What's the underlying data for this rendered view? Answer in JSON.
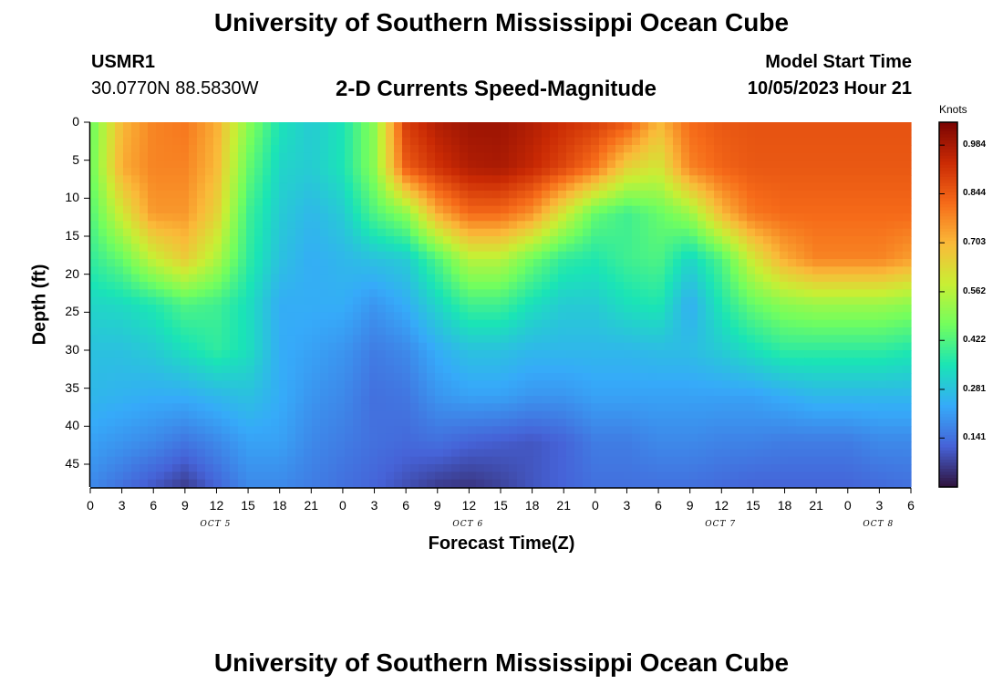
{
  "header": {
    "title": "University of Southern Mississippi Ocean Cube",
    "station_id": "USMR1",
    "coordinates": "30.0770N  88.5830W",
    "plot_title": "2-D Currents Speed-Magnitude",
    "model_start_label": "Model Start Time",
    "model_start_value": "10/05/2023 Hour 21"
  },
  "footer": {
    "title": "University of Southern Mississippi Ocean Cube"
  },
  "chart_data": {
    "type": "heatmap",
    "title": "2-D Currents Speed-Magnitude",
    "xlabel": "Forecast Time(Z)",
    "ylabel": "Depth (ft)",
    "x_tick_labels": [
      "0",
      "3",
      "6",
      "9",
      "12",
      "15",
      "18",
      "21",
      "0",
      "3",
      "6",
      "9",
      "12",
      "15",
      "18",
      "21",
      "0",
      "3",
      "6",
      "9",
      "12",
      "15",
      "18",
      "21",
      "0",
      "3",
      "6"
    ],
    "x_range_hours": [
      0,
      78
    ],
    "date_labels": [
      {
        "label": "OCT 5",
        "hour": 12
      },
      {
        "label": "OCT 6",
        "hour": 36
      },
      {
        "label": "OCT 7",
        "hour": 60
      },
      {
        "label": "OCT 8",
        "hour": 75
      }
    ],
    "y_ticks": [
      0,
      5,
      10,
      15,
      20,
      25,
      30,
      35,
      40,
      45
    ],
    "y_range": [
      0,
      48
    ],
    "y_inverted": true,
    "colorbar": {
      "units": "Knots",
      "ticks": [
        0.984,
        0.844,
        0.703,
        0.562,
        0.422,
        0.281,
        0.141
      ],
      "range": [
        0.0,
        1.05
      ],
      "colormap": [
        "#30123b",
        "#4662d7",
        "#36aaf9",
        "#1ae4b6",
        "#72fe5e",
        "#c8ef34",
        "#faba39",
        "#f66b19",
        "#ca2a04",
        "#7a0403"
      ]
    },
    "speed_grid": {
      "x_hours": [
        0,
        3,
        6,
        9,
        12,
        15,
        18,
        21,
        24,
        27,
        30,
        33,
        36,
        39,
        42,
        45,
        48,
        51,
        54,
        57,
        60,
        63,
        66,
        69,
        72,
        75,
        78
      ],
      "depths_ft": [
        0,
        6,
        12,
        18,
        24,
        30,
        36,
        42,
        48
      ],
      "values": [
        [
          0.45,
          0.7,
          0.78,
          0.8,
          0.72,
          0.5,
          0.35,
          0.3,
          0.35,
          0.5,
          0.9,
          0.97,
          1.0,
          1.0,
          0.97,
          0.93,
          0.9,
          0.85,
          0.7,
          0.82,
          0.85,
          0.86,
          0.86,
          0.86,
          0.86,
          0.86,
          0.86
        ],
        [
          0.45,
          0.72,
          0.78,
          0.78,
          0.7,
          0.45,
          0.32,
          0.3,
          0.35,
          0.5,
          0.84,
          0.92,
          0.97,
          0.98,
          0.94,
          0.88,
          0.8,
          0.65,
          0.6,
          0.78,
          0.83,
          0.85,
          0.85,
          0.85,
          0.85,
          0.85,
          0.85
        ],
        [
          0.42,
          0.6,
          0.75,
          0.75,
          0.65,
          0.4,
          0.3,
          0.26,
          0.3,
          0.42,
          0.5,
          0.72,
          0.82,
          0.82,
          0.76,
          0.6,
          0.45,
          0.4,
          0.45,
          0.52,
          0.7,
          0.8,
          0.82,
          0.82,
          0.82,
          0.82,
          0.82
        ],
        [
          0.38,
          0.45,
          0.58,
          0.66,
          0.55,
          0.38,
          0.28,
          0.24,
          0.26,
          0.28,
          0.3,
          0.42,
          0.56,
          0.56,
          0.46,
          0.38,
          0.36,
          0.4,
          0.42,
          0.32,
          0.42,
          0.6,
          0.72,
          0.78,
          0.78,
          0.78,
          0.74
        ],
        [
          0.32,
          0.33,
          0.36,
          0.42,
          0.4,
          0.34,
          0.24,
          0.24,
          0.24,
          0.2,
          0.24,
          0.32,
          0.4,
          0.4,
          0.34,
          0.3,
          0.3,
          0.34,
          0.36,
          0.24,
          0.36,
          0.45,
          0.5,
          0.52,
          0.52,
          0.52,
          0.5
        ],
        [
          0.28,
          0.28,
          0.3,
          0.34,
          0.38,
          0.34,
          0.24,
          0.22,
          0.2,
          0.16,
          0.18,
          0.24,
          0.28,
          0.28,
          0.26,
          0.26,
          0.26,
          0.26,
          0.27,
          0.27,
          0.3,
          0.34,
          0.38,
          0.38,
          0.38,
          0.38,
          0.36
        ],
        [
          0.26,
          0.25,
          0.24,
          0.24,
          0.26,
          0.28,
          0.24,
          0.2,
          0.18,
          0.14,
          0.15,
          0.2,
          0.22,
          0.22,
          0.2,
          0.2,
          0.22,
          0.22,
          0.22,
          0.22,
          0.22,
          0.22,
          0.24,
          0.26,
          0.26,
          0.26,
          0.26
        ],
        [
          0.22,
          0.2,
          0.18,
          0.15,
          0.18,
          0.22,
          0.22,
          0.18,
          0.16,
          0.14,
          0.13,
          0.14,
          0.12,
          0.11,
          0.1,
          0.12,
          0.16,
          0.16,
          0.18,
          0.18,
          0.17,
          0.17,
          0.16,
          0.16,
          0.16,
          0.18,
          0.18
        ],
        [
          0.18,
          0.14,
          0.1,
          0.06,
          0.12,
          0.18,
          0.18,
          0.16,
          0.14,
          0.12,
          0.09,
          0.06,
          0.05,
          0.07,
          0.1,
          0.12,
          0.14,
          0.14,
          0.14,
          0.14,
          0.13,
          0.12,
          0.12,
          0.12,
          0.12,
          0.13,
          0.14
        ]
      ]
    }
  }
}
